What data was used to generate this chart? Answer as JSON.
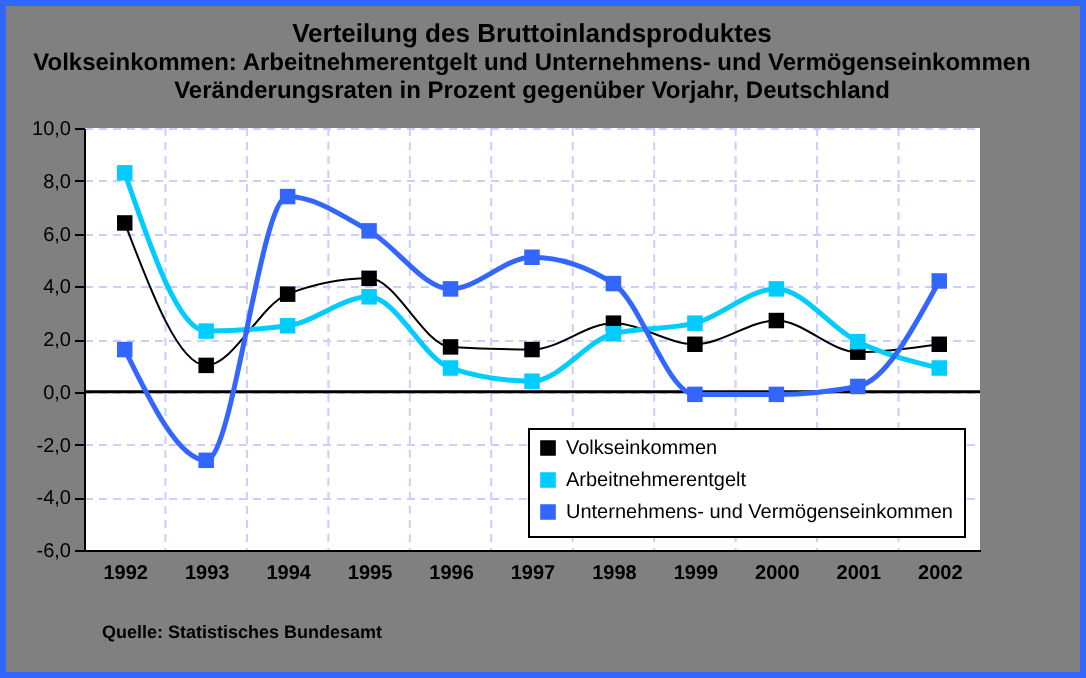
{
  "chart_data": {
    "type": "line",
    "title": "Verteilung des Bruttoinlandsproduktes",
    "subtitle": "Volkseinkommen: Arbeitnehmerentgelt und Unternehmens- und Vermögenseinkommen",
    "annotations": [
      "Veränderungsraten in Prozent gegenüber Vorjahr, Deutschland",
      "Quelle: Statistisches Bundesamt"
    ],
    "categories": [
      "1992",
      "1993",
      "1994",
      "1995",
      "1996",
      "1997",
      "1998",
      "1999",
      "2000",
      "2001",
      "2002"
    ],
    "series": [
      {
        "name": "Volkseinkommen",
        "color": "#000000",
        "values": [
          6.4,
          1.0,
          3.7,
          4.3,
          1.7,
          1.6,
          2.6,
          1.8,
          2.7,
          1.5,
          1.8
        ]
      },
      {
        "name": "Arbeitnehmerentgelt",
        "color": "#00ccff",
        "values": [
          8.3,
          2.3,
          2.5,
          3.6,
          0.9,
          0.4,
          2.2,
          2.6,
          3.9,
          1.9,
          0.9
        ]
      },
      {
        "name": "Unternehmens- und Vermögenseinkommen",
        "color": "#3366ff",
        "values": [
          1.6,
          -2.6,
          7.4,
          6.1,
          3.9,
          5.1,
          4.1,
          -0.1,
          -0.1,
          0.2,
          4.2
        ]
      }
    ],
    "ylim": [
      -6,
      10
    ],
    "yticks": [
      {
        "value": -6,
        "label": "-6,0"
      },
      {
        "value": -4,
        "label": "-4,0"
      },
      {
        "value": -2,
        "label": "-2,0"
      },
      {
        "value": 0,
        "label": "0,0"
      },
      {
        "value": 2,
        "label": "2,0"
      },
      {
        "value": 4,
        "label": "4,0"
      },
      {
        "value": 6,
        "label": "6,0"
      },
      {
        "value": 8,
        "label": "8,0"
      },
      {
        "value": 10,
        "label": "10,0"
      }
    ],
    "ref_lines": [
      {
        "axis": "y",
        "value": 0,
        "color": "#000000"
      }
    ],
    "grid": true,
    "legend": "bottom right",
    "marker": "square",
    "line_style": "solid"
  }
}
